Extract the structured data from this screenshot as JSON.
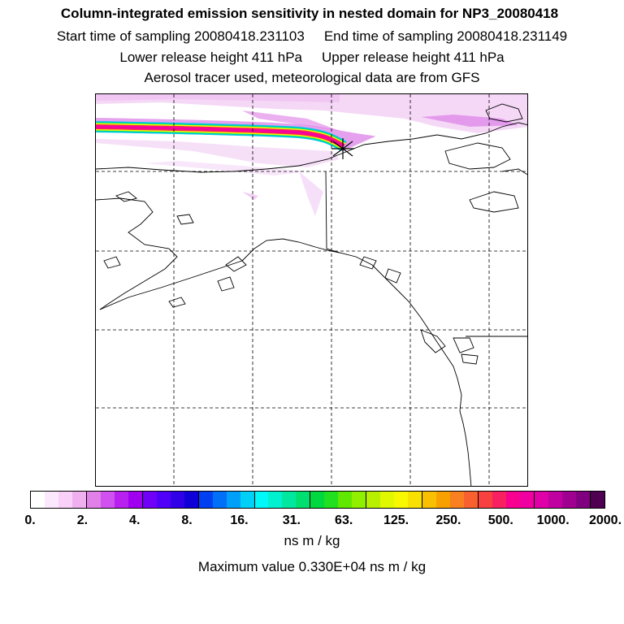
{
  "title": "Column-integrated emission sensitivity in nested domain for NP3_20080418",
  "start_label": "Start time of sampling 20080418.231103",
  "end_label": "End time of sampling 20080418.231149",
  "lower_label": "Lower release height  411 hPa",
  "upper_label": "Upper release height  411 hPa",
  "aerosol_label": "Aerosol tracer used, meteorological data are from GFS",
  "colorbar": {
    "tick_labels": [
      "0.",
      "2.",
      "4.",
      "8.",
      "16.",
      "31.",
      "63.",
      "125.",
      "250.",
      "500.",
      "1000.",
      "2000."
    ],
    "colors": [
      "#ffffff",
      "#fce8fc",
      "#f8d0f8",
      "#f0b0f0",
      "#e080e8",
      "#d050f0",
      "#b820f0",
      "#a000f0",
      "#7000f8",
      "#5000f8",
      "#3000e8",
      "#1000d8",
      "#0040f0",
      "#0070f8",
      "#00a0f8",
      "#00d0f8",
      "#00f8f8",
      "#00f0d0",
      "#00e8a0",
      "#00e070",
      "#00d840",
      "#20e020",
      "#60e800",
      "#90f000",
      "#b8f000",
      "#e0f800",
      "#f8f800",
      "#f8e000",
      "#f8c000",
      "#f8a000",
      "#f88020",
      "#f86030",
      "#f84040",
      "#f82060",
      "#f80090",
      "#f000a0",
      "#e000a8",
      "#c000a0",
      "#a00090",
      "#800080",
      "#500050"
    ],
    "units": "ns m / kg",
    "maximum": "Maximum value  0.330E+04 ns m / kg"
  },
  "map": {
    "description_icon": "release-point-star-icon"
  }
}
